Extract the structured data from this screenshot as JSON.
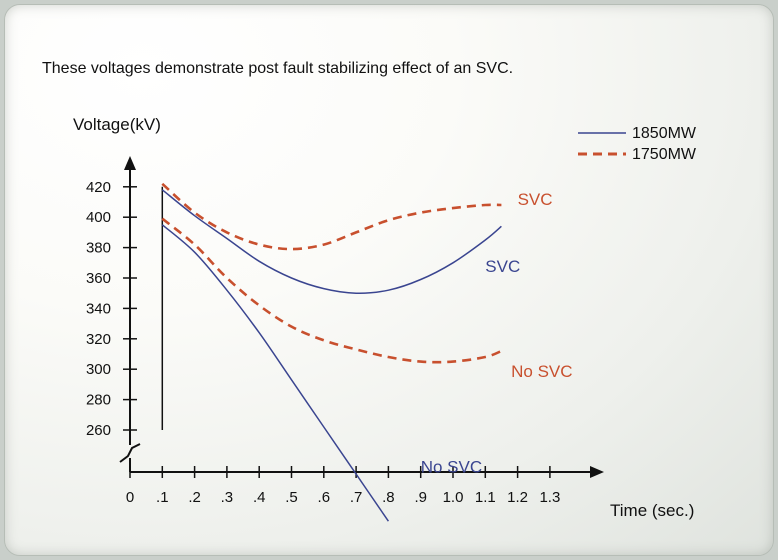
{
  "caption": "These voltages demonstrate post fault stabilizing effect of an SVC.",
  "colors": {
    "1850MW": "#3a4590",
    "1750MW": "#c8502e"
  },
  "chart_data": {
    "type": "line",
    "title": "",
    "xlabel": "Time (sec.)",
    "ylabel": "Voltage(kV)",
    "x_ticks": [
      "0",
      ".1",
      ".2",
      ".3",
      ".4",
      ".5",
      ".6",
      ".7",
      ".8",
      ".9",
      "1.0",
      "1.1",
      "1.2",
      "1.3"
    ],
    "y_ticks": [
      "260",
      "280",
      "300",
      "320",
      "340",
      "360",
      "380",
      "400",
      "420"
    ],
    "ylim": [
      260,
      420
    ],
    "y_axis_broken": true,
    "legend": {
      "position": "top-right"
    },
    "series": [
      {
        "name": "1850MW",
        "condition": "SVC",
        "style": "solid",
        "x": [
          0.1,
          0.2,
          0.3,
          0.4,
          0.5,
          0.6,
          0.7,
          0.8,
          0.9,
          1.0,
          1.1,
          1.15
        ],
        "y": [
          418,
          401,
          386,
          371,
          360,
          353,
          350,
          352,
          359,
          370,
          385,
          394
        ]
      },
      {
        "name": "1850MW",
        "condition": "No SVC",
        "style": "solid",
        "x": [
          0.1,
          0.2,
          0.3,
          0.4,
          0.5,
          0.6,
          0.7,
          0.8
        ],
        "y": [
          395,
          377,
          352,
          324,
          293,
          262,
          231,
          200
        ]
      },
      {
        "name": "1750MW",
        "condition": "SVC",
        "style": "dashed",
        "x": [
          0.1,
          0.2,
          0.3,
          0.4,
          0.5,
          0.6,
          0.7,
          0.8,
          0.9,
          1.0,
          1.1,
          1.15
        ],
        "y": [
          422,
          403,
          390,
          382,
          379,
          382,
          390,
          398,
          403,
          406,
          408,
          408
        ]
      },
      {
        "name": "1750MW",
        "condition": "No SVC",
        "style": "dashed",
        "x": [
          0.1,
          0.2,
          0.3,
          0.4,
          0.5,
          0.6,
          0.7,
          0.8,
          0.9,
          1.0,
          1.1,
          1.15
        ],
        "y": [
          399,
          382,
          360,
          342,
          328,
          319,
          313,
          308,
          305,
          305,
          308,
          312
        ]
      }
    ],
    "annotations": [
      {
        "text": "SVC",
        "series": "1750MW",
        "anchor_x": 1.2,
        "anchor_y": 408
      },
      {
        "text": "SVC",
        "series": "1850MW",
        "anchor_x": 1.1,
        "anchor_y": 364
      },
      {
        "text": "No SVC",
        "series": "1750MW",
        "anchor_x": 1.18,
        "anchor_y": 295
      },
      {
        "text": "No SVC",
        "series": "1850MW",
        "anchor_x": 0.9,
        "anchor_y": 232
      }
    ]
  }
}
